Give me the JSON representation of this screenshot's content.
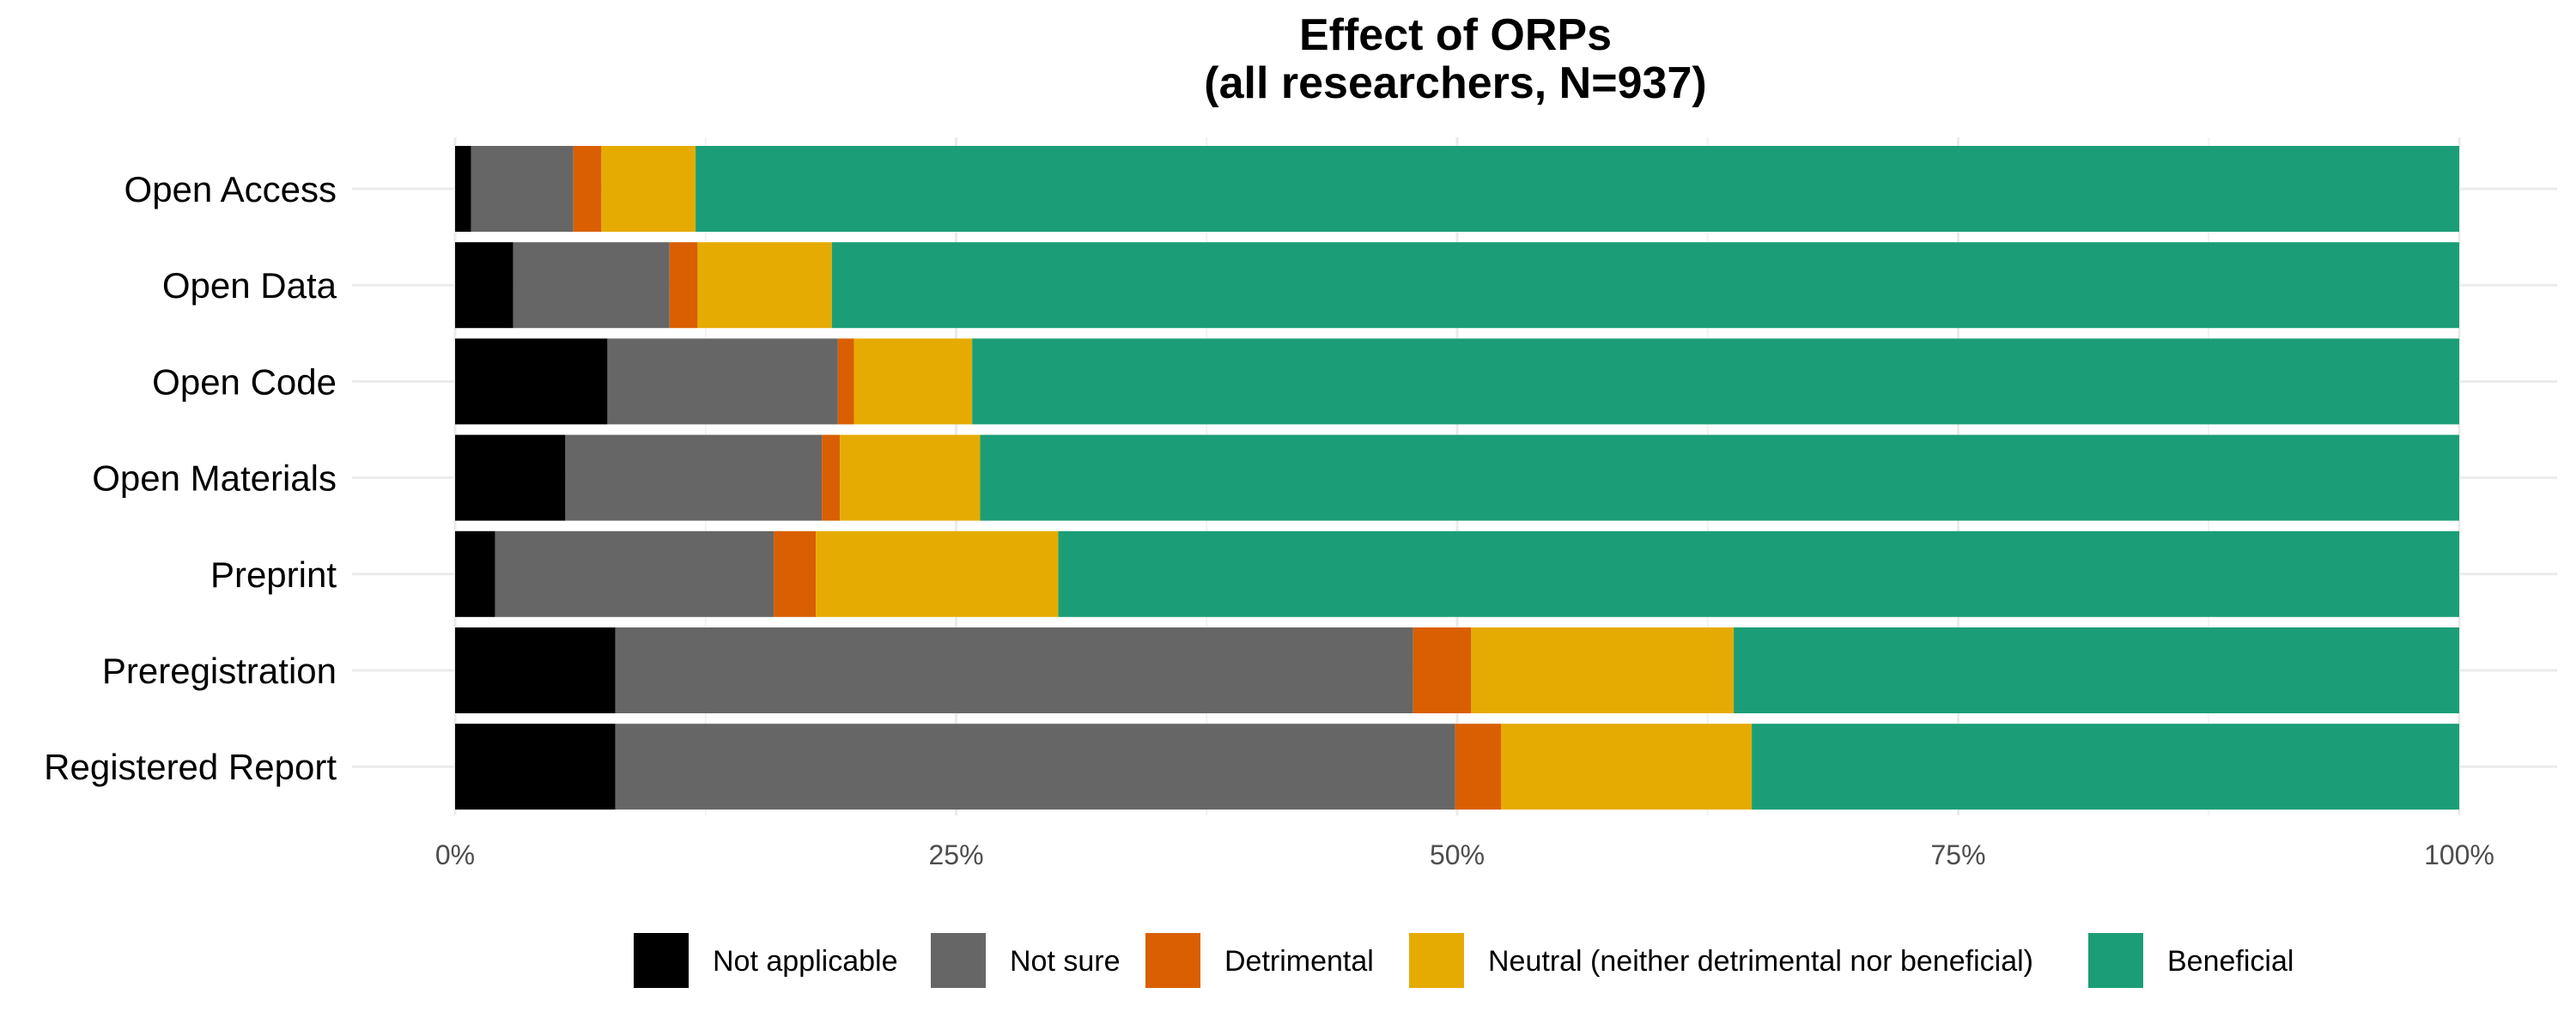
{
  "chart_data": {
    "type": "bar",
    "orientation": "horizontal",
    "stacked": true,
    "percent": true,
    "title": "Effect of ORPs",
    "subtitle": "(all researchers, N=937)",
    "xlabel": "",
    "ylabel": "",
    "xlim": [
      0,
      100
    ],
    "x_ticks": [
      "0%",
      "25%",
      "50%",
      "75%",
      "100%"
    ],
    "grid": true,
    "legend_position": "bottom",
    "categories": [
      "Open Access",
      "Open Data",
      "Open Code",
      "Open Materials",
      "Preprint",
      "Preregistration",
      "Registered Report"
    ],
    "series": [
      {
        "name": "Not applicable",
        "color": "#000000",
        "values": [
          0.8,
          2.9,
          7.6,
          5.5,
          2.0,
          8.0,
          8.0
        ]
      },
      {
        "name": "Not sure",
        "color": "#666666",
        "values": [
          5.1,
          7.8,
          11.5,
          12.8,
          13.9,
          39.8,
          41.9
        ]
      },
      {
        "name": "Detrimental",
        "color": "#d95f02",
        "values": [
          1.4,
          1.4,
          0.8,
          0.9,
          2.1,
          2.9,
          2.3
        ]
      },
      {
        "name": "Neutral (neither detrimental nor beneficial)",
        "color": "#e6ab02",
        "values": [
          4.7,
          6.7,
          5.9,
          7.0,
          12.1,
          13.1,
          12.5
        ]
      },
      {
        "name": "Beneficial",
        "color": "#1b9e77",
        "values": [
          88.0,
          81.2,
          74.2,
          73.8,
          69.9,
          36.2,
          35.3
        ]
      }
    ]
  }
}
